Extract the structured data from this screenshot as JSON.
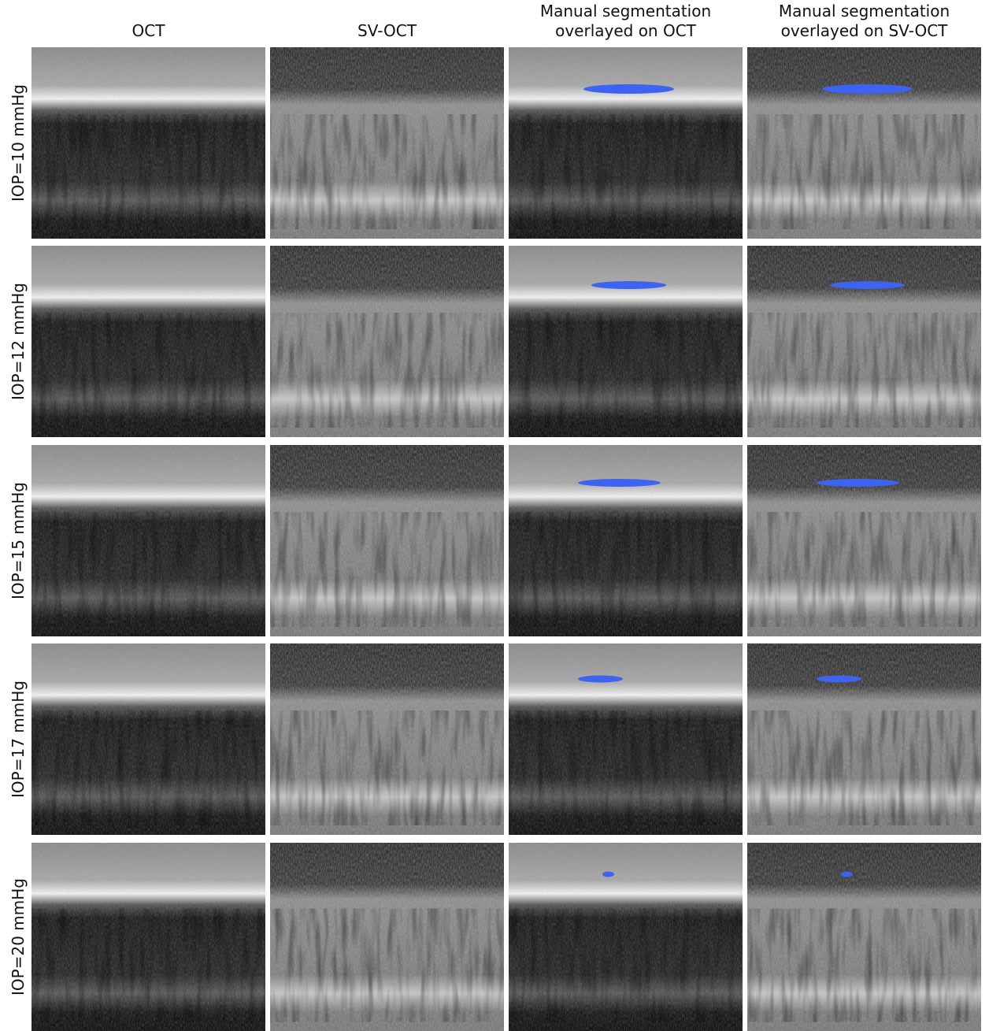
{
  "columns": [
    [
      "OCT"
    ],
    [
      "SV-OCT"
    ],
    [
      "Manual segmentation",
      "overlayed on OCT"
    ],
    [
      "Manual segmentation",
      "overlayed on SV-OCT"
    ]
  ],
  "rows": [
    "IOP=10 mmHg",
    "IOP=12 mmHg",
    "IOP=15 mmHg",
    "IOP=17 mmHg",
    "IOP=20 mmHg"
  ]
}
